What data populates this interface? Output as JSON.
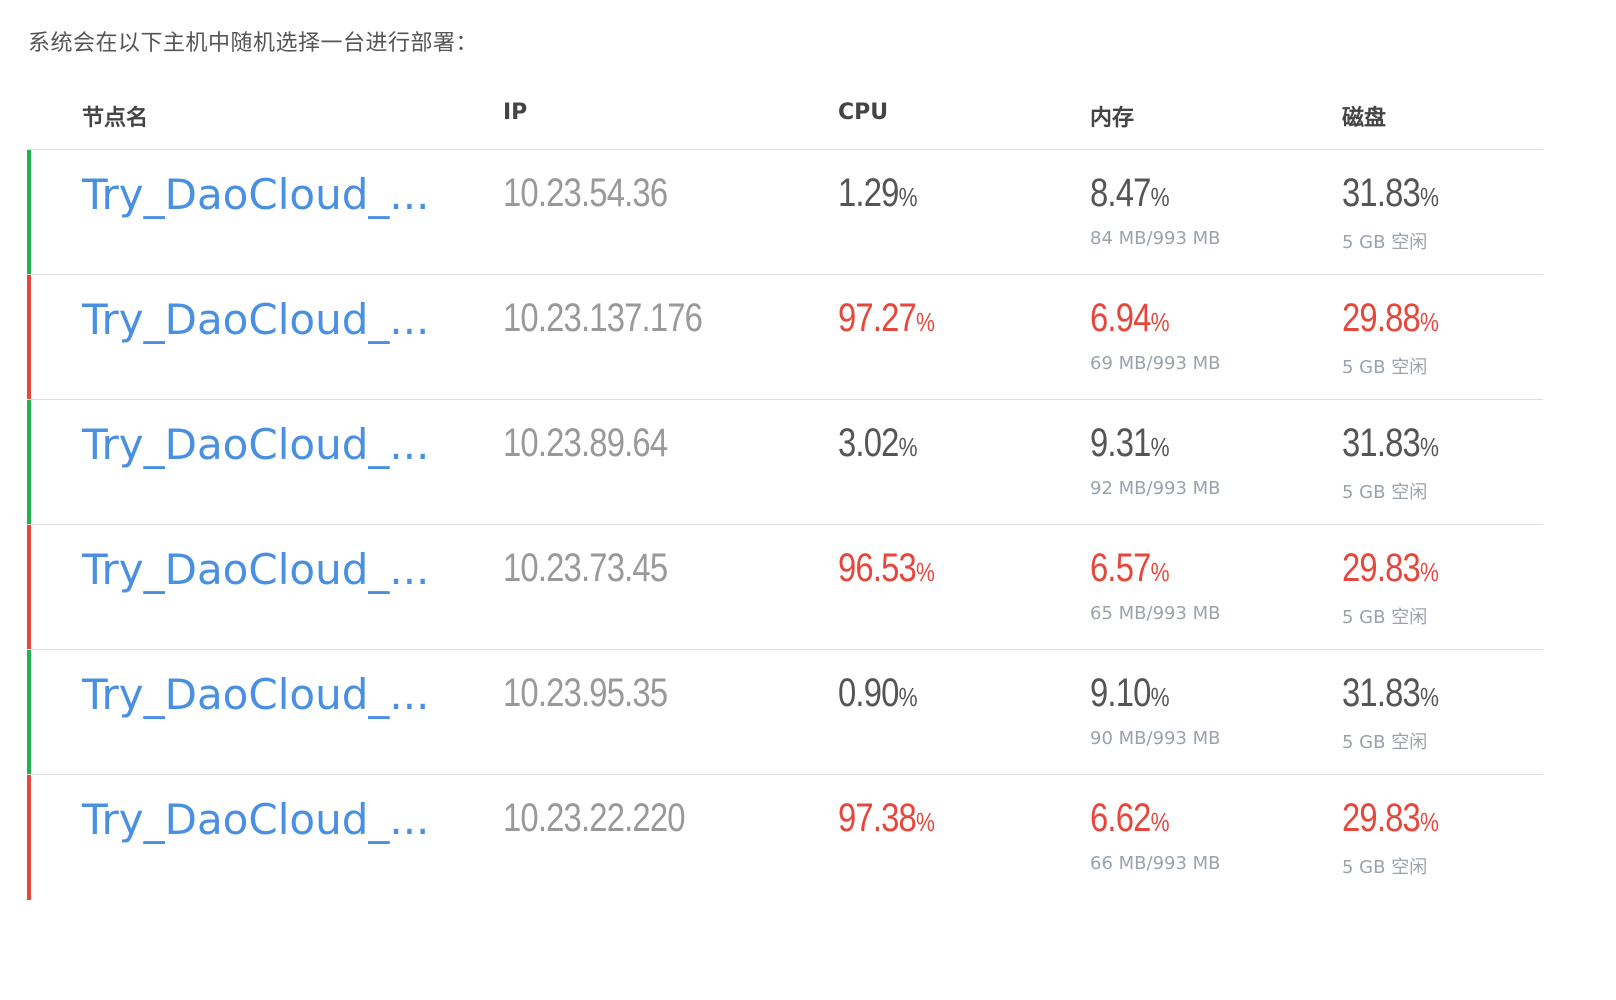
{
  "intro": "系统会在以下主机中随机选择一台进行部署：",
  "colors": {
    "link": "#4a90e2",
    "alert": "#e5473c",
    "ok_bar": "#22b14c",
    "alert_bar": "#e5473c"
  },
  "headers": {
    "name": "节点名",
    "ip": "IP",
    "cpu": "CPU",
    "memory": "内存",
    "disk": "磁盘"
  },
  "rows": [
    {
      "status": "ok",
      "name": "Try_DaoCloud_...",
      "ip": "10.23.54.36",
      "cpu": "1.29",
      "mem": "8.47",
      "mem_detail": "84 MB/993 MB",
      "disk": "31.83",
      "disk_detail": "5 GB 空闲"
    },
    {
      "status": "alert",
      "name": "Try_DaoCloud_...",
      "ip": "10.23.137.176",
      "cpu": "97.27",
      "mem": "6.94",
      "mem_detail": "69 MB/993 MB",
      "disk": "29.88",
      "disk_detail": "5 GB 空闲"
    },
    {
      "status": "ok",
      "name": "Try_DaoCloud_...",
      "ip": "10.23.89.64",
      "cpu": "3.02",
      "mem": "9.31",
      "mem_detail": "92 MB/993 MB",
      "disk": "31.83",
      "disk_detail": "5 GB 空闲"
    },
    {
      "status": "alert",
      "name": "Try_DaoCloud_...",
      "ip": "10.23.73.45",
      "cpu": "96.53",
      "mem": "6.57",
      "mem_detail": "65 MB/993 MB",
      "disk": "29.83",
      "disk_detail": "5 GB 空闲"
    },
    {
      "status": "ok",
      "name": "Try_DaoCloud_...",
      "ip": "10.23.95.35",
      "cpu": "0.90",
      "mem": "9.10",
      "mem_detail": "90 MB/993 MB",
      "disk": "31.83",
      "disk_detail": "5 GB 空闲"
    },
    {
      "status": "alert",
      "name": "Try_DaoCloud_...",
      "ip": "10.23.22.220",
      "cpu": "97.38",
      "mem": "6.62",
      "mem_detail": "66 MB/993 MB",
      "disk": "29.83",
      "disk_detail": "5 GB 空闲"
    }
  ],
  "percent_sign": "%"
}
